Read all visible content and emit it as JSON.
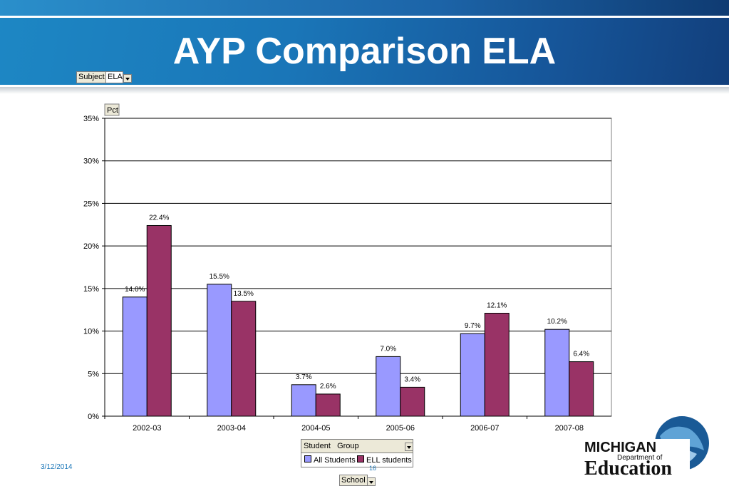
{
  "title": "AYP Comparison ELA",
  "filter": {
    "label": "Subject",
    "value": "ELA"
  },
  "footer": {
    "date": "3/12/2014",
    "page": "16"
  },
  "page_field": {
    "label": "School"
  },
  "logo": {
    "line1": "MICHIGAN",
    "line2": "Department of",
    "line3": "Education"
  },
  "legend": {
    "header": "Student   Group",
    "items": [
      {
        "label": "All Students",
        "color": "#9999ff"
      },
      {
        "label": "ELL students",
        "color": "#993366"
      }
    ]
  },
  "chart_data": {
    "type": "bar",
    "title": "",
    "ylabel": "Pct",
    "xlabel": "",
    "categories": [
      "2002-03",
      "2003-04",
      "2004-05",
      "2005-06",
      "2006-07",
      "2007-08"
    ],
    "series": [
      {
        "name": "All Students",
        "values": [
          14.0,
          15.5,
          3.7,
          7.0,
          9.7,
          10.2
        ],
        "labels": [
          "14.0%",
          "15.5%",
          "3.7%",
          "7.0%",
          "9.7%",
          "10.2%"
        ],
        "color": "#9999ff"
      },
      {
        "name": "ELL students",
        "values": [
          22.4,
          13.5,
          2.6,
          3.4,
          12.1,
          6.4
        ],
        "labels": [
          "22.4%",
          "13.5%",
          "2.6%",
          "3.4%",
          "12.1%",
          "6.4%"
        ],
        "color": "#993366"
      }
    ],
    "ylim": [
      0,
      35
    ],
    "yticks": [
      0,
      5,
      10,
      15,
      20,
      25,
      30,
      35
    ],
    "ytick_labels": [
      "0%",
      "5%",
      "10%",
      "15%",
      "20%",
      "25%",
      "30%",
      "35%"
    ],
    "grid": true,
    "legend_position": "bottom"
  }
}
